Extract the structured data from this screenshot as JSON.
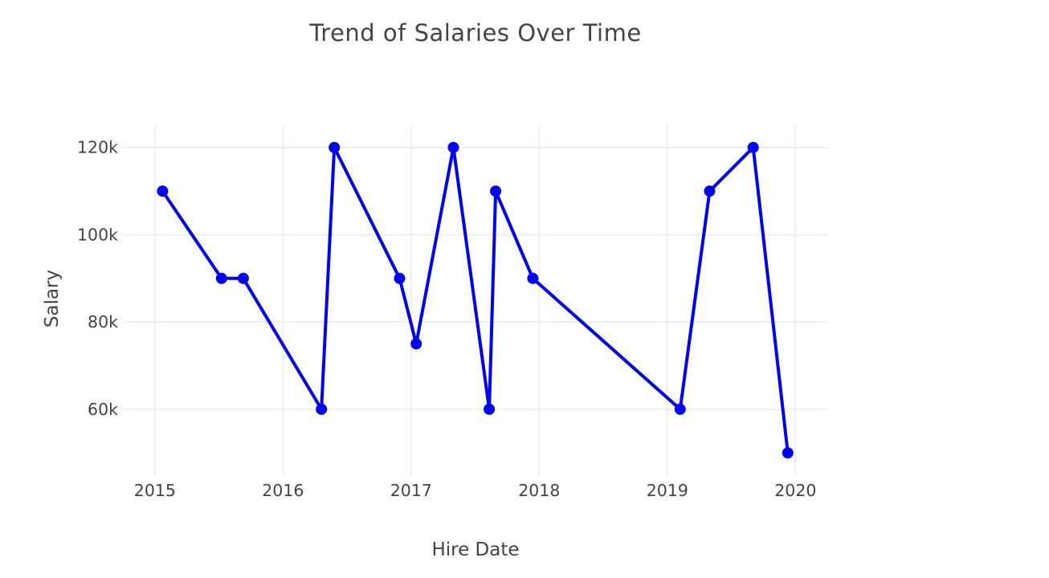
{
  "chart_data": {
    "type": "line",
    "title": "Trend of Salaries Over Time",
    "xlabel": "Hire Date",
    "ylabel": "Salary",
    "series": [
      {
        "name": "Salary",
        "x": [
          2015.06,
          2015.52,
          2015.69,
          2016.3,
          2016.4,
          2016.91,
          2017.04,
          2017.33,
          2017.61,
          2017.66,
          2017.95,
          2019.1,
          2019.33,
          2019.67,
          2019.94
        ],
        "y": [
          110000,
          90000,
          90000,
          60000,
          120000,
          90000,
          75000,
          120000,
          60000,
          110000,
          90000,
          60000,
          110000,
          120000,
          50000
        ]
      }
    ],
    "x_ticks": [
      {
        "value": 2015,
        "label": "2015"
      },
      {
        "value": 2016,
        "label": "2016"
      },
      {
        "value": 2017,
        "label": "2017"
      },
      {
        "value": 2018,
        "label": "2018"
      },
      {
        "value": 2019,
        "label": "2019"
      },
      {
        "value": 2020,
        "label": "2020"
      }
    ],
    "y_ticks": [
      {
        "value": 60000,
        "label": "60k"
      },
      {
        "value": 80000,
        "label": "80k"
      },
      {
        "value": 100000,
        "label": "100k"
      },
      {
        "value": 120000,
        "label": "120k"
      }
    ],
    "x_range": [
      2014.75,
      2020.255
    ],
    "y_range": [
      44700,
      125100
    ],
    "grid": true,
    "legend": "none",
    "marker": "circle",
    "colors": {
      "line": "#0000ff",
      "grid": "#ebebeb",
      "text": "#444444",
      "background": "#ffffff"
    }
  }
}
